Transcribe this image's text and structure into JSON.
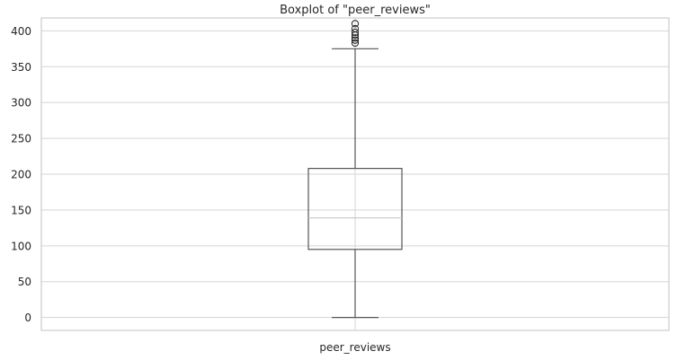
{
  "chart_data": {
    "type": "box",
    "title": "Boxplot of \"peer_reviews\"",
    "xlabel": "",
    "ylabel": "",
    "categories": [
      "peer_reviews"
    ],
    "ylim": [
      -18,
      418
    ],
    "yticks": [
      0,
      50,
      100,
      150,
      200,
      250,
      300,
      350,
      400
    ],
    "grid": true,
    "boxes": [
      {
        "name": "peer_reviews",
        "whisker_low": 0,
        "q1": 95,
        "median": 139,
        "q3": 208,
        "whisker_high": 375,
        "outliers": [
          383,
          387,
          390,
          394,
          398,
          403,
          410
        ]
      }
    ]
  }
}
